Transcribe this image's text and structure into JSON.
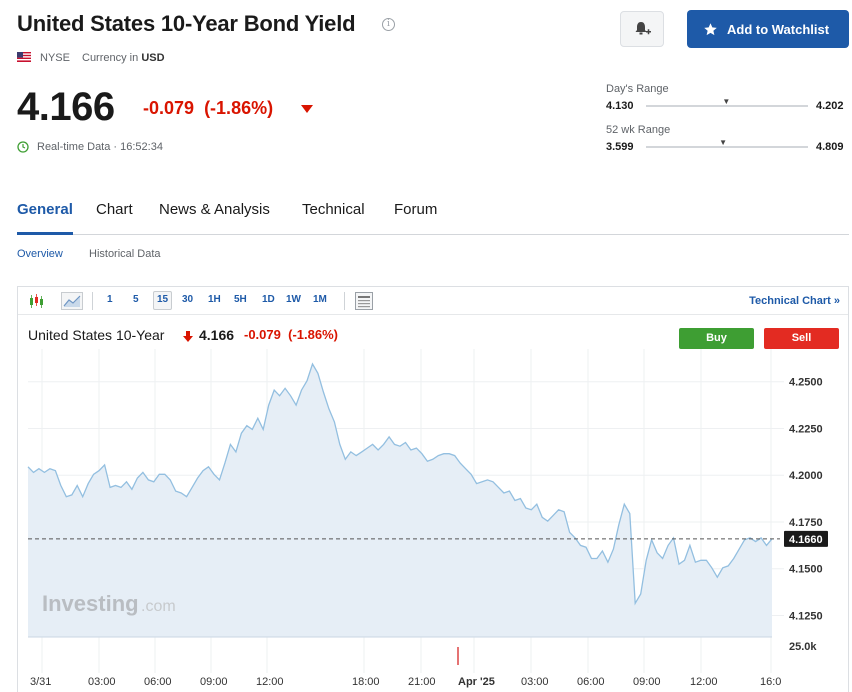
{
  "header": {
    "title": "United States 10-Year Bond Yield",
    "exchange": "NYSE",
    "currency_label": "Currency in",
    "currency": "USD",
    "watchlist_label": "Add to Watchlist"
  },
  "quote": {
    "price": "4.166",
    "change": "-0.079",
    "change_pct": "(-1.86%)",
    "realtime": "Real-time Data · 16:52:34"
  },
  "ranges": {
    "day_label": "Day's Range",
    "day_low": "4.130",
    "day_high": "4.202",
    "day_position": 0.49,
    "wk52_label": "52 wk Range",
    "wk52_low": "3.599",
    "wk52_high": "4.809",
    "wk52_position": 0.47
  },
  "tabs": [
    "General",
    "Chart",
    "News & Analysis",
    "Technical",
    "Forum"
  ],
  "subtabs": [
    "Overview",
    "Historical Data"
  ],
  "toolbar": {
    "intervals": [
      "1",
      "5",
      "15",
      "30",
      "1H",
      "5H",
      "1D",
      "1W",
      "1M"
    ],
    "selected": "15",
    "tech_link": "Technical Chart »"
  },
  "chart_header": {
    "name": "United States 10-Year",
    "price": "4.166",
    "change": "-0.079",
    "change_pct": "(-1.86%)",
    "buy": "Buy",
    "sell": "Sell"
  },
  "colors": {
    "accent": "#1e5aa8",
    "down": "#d91400",
    "buy": "#3e9e33",
    "sell": "#e32b22",
    "line": "#93bfe0",
    "area": "#e6eef6"
  },
  "chart_data": {
    "type": "area",
    "y_ticks": [
      "4.2500",
      "4.2250",
      "4.2000",
      "4.1750",
      "4.1500",
      "4.1250"
    ],
    "ylim": [
      4.1135,
      4.2675
    ],
    "x_ticks": [
      "3/31",
      "03:00",
      "06:00",
      "09:00",
      "12:00",
      "18:00",
      "21:00",
      "Apr '25",
      "03:00",
      "06:00",
      "09:00",
      "12:00",
      "16:0"
    ],
    "current_label": "4.1660",
    "current_value": 4.166,
    "volume_label": "25.0k",
    "watermark": "Investing",
    "watermark_suffix": ".com",
    "grid": true,
    "values": [
      4.2045,
      4.2015,
      4.2035,
      4.2015,
      4.2035,
      4.2025,
      4.1945,
      4.1885,
      4.1895,
      4.1945,
      4.1885,
      4.1955,
      4.2005,
      4.2025,
      4.2055,
      4.1935,
      4.1945,
      4.1935,
      4.1965,
      4.1925,
      4.1985,
      4.2015,
      4.1975,
      4.1965,
      4.2005,
      4.2005,
      4.1975,
      4.1915,
      4.1905,
      4.1885,
      4.1935,
      4.1985,
      4.2025,
      4.2045,
      4.2005,
      4.1975,
      4.2065,
      4.2165,
      4.2125,
      4.2225,
      4.2265,
      4.2245,
      4.2305,
      4.2245,
      4.2375,
      4.2455,
      4.2425,
      4.2465,
      4.2425,
      4.2375,
      4.2455,
      4.2505,
      4.2595,
      4.2545,
      4.2445,
      4.2355,
      4.2285,
      4.2165,
      4.2085,
      4.2125,
      4.2105,
      4.2125,
      4.2145,
      4.2165,
      4.2135,
      4.2165,
      4.2205,
      4.2165,
      4.2155,
      4.2175,
      4.2135,
      4.2145,
      4.2115,
      4.2075,
      4.2085,
      4.2105,
      4.2115,
      4.2115,
      4.2105,
      4.2065,
      4.2035,
      4.2005,
      4.1955,
      4.1965,
      4.1975,
      4.1965,
      4.1935,
      4.1905,
      4.1915,
      4.1865,
      4.1875,
      4.1825,
      4.1815,
      4.1845,
      4.1775,
      4.1755,
      4.1785,
      4.1815,
      4.1805,
      4.1695,
      4.1665,
      4.1625,
      4.1615,
      4.1555,
      4.1555,
      4.1595,
      4.1535,
      4.1605,
      4.1735,
      4.1845,
      4.1795,
      4.1315,
      4.1365,
      4.1545,
      4.1655,
      4.1585,
      4.1555,
      4.1625,
      4.1665,
      4.1525,
      4.1545,
      4.1625,
      4.1535,
      4.1545,
      4.1545,
      4.1505,
      4.1455,
      4.1505,
      4.1515,
      4.1555,
      4.1605,
      4.1655,
      4.1665,
      4.1645,
      4.1665,
      4.1625,
      4.166
    ]
  }
}
